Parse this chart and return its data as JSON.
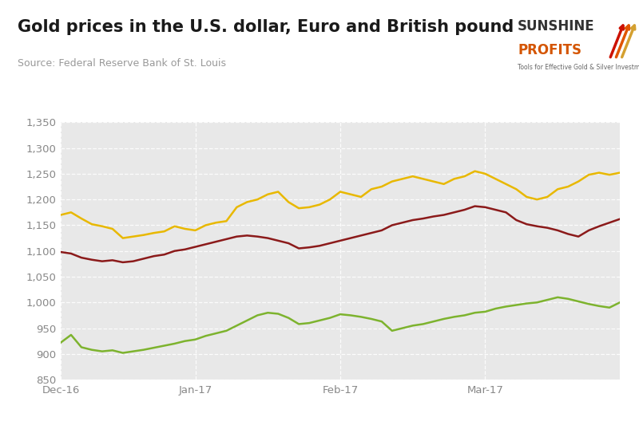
{
  "title": "Gold prices in the U.S. dollar, Euro and British pound",
  "source": "Source: Federal Reserve Bank of St. Louis",
  "logo_line1": "SUNSHINE",
  "logo_line2": "PROFITS",
  "logo_sub": "Tools for Effective Gold & Silver Investments",
  "background_color": "#ffffff",
  "plot_bg_color": "#e8e8e8",
  "ylim": [
    850,
    1350
  ],
  "yticks": [
    850,
    900,
    950,
    1000,
    1050,
    1100,
    1150,
    1200,
    1250,
    1300,
    1350
  ],
  "xtick_labels": [
    "Dec-16",
    "Jan-17",
    "Feb-17",
    "Mar-17"
  ],
  "grid_color": "#ffffff",
  "usd_color": "#e8b800",
  "eur_color": "#8b1a1a",
  "gbp_color": "#7db32e",
  "usd_values": [
    1170,
    1175,
    1163,
    1152,
    1148,
    1143,
    1125,
    1128,
    1131,
    1135,
    1138,
    1148,
    1143,
    1140,
    1150,
    1155,
    1158,
    1185,
    1195,
    1200,
    1210,
    1215,
    1195,
    1183,
    1185,
    1190,
    1200,
    1215,
    1210,
    1205,
    1220,
    1225,
    1235,
    1240,
    1245,
    1240,
    1235,
    1230,
    1240,
    1245,
    1255,
    1250,
    1240,
    1230,
    1220,
    1205,
    1200,
    1205,
    1220,
    1225,
    1235,
    1248,
    1252,
    1248,
    1252
  ],
  "eur_values": [
    1098,
    1095,
    1087,
    1083,
    1080,
    1082,
    1078,
    1080,
    1085,
    1090,
    1093,
    1100,
    1103,
    1108,
    1113,
    1118,
    1123,
    1128,
    1130,
    1128,
    1125,
    1120,
    1115,
    1105,
    1107,
    1110,
    1115,
    1120,
    1125,
    1130,
    1135,
    1140,
    1150,
    1155,
    1160,
    1163,
    1167,
    1170,
    1175,
    1180,
    1187,
    1185,
    1180,
    1175,
    1160,
    1152,
    1148,
    1145,
    1140,
    1133,
    1128,
    1140,
    1148,
    1155,
    1162
  ],
  "gbp_values": [
    922,
    937,
    913,
    908,
    905,
    907,
    902,
    905,
    908,
    912,
    916,
    920,
    925,
    928,
    935,
    940,
    945,
    955,
    965,
    975,
    980,
    978,
    970,
    958,
    960,
    965,
    970,
    977,
    975,
    972,
    968,
    963,
    945,
    950,
    955,
    958,
    963,
    968,
    972,
    975,
    980,
    982,
    988,
    992,
    995,
    998,
    1000,
    1005,
    1010,
    1007,
    1002,
    997,
    993,
    990,
    1000
  ],
  "num_points": 55,
  "xtick_positions": [
    0,
    13,
    27,
    41
  ]
}
